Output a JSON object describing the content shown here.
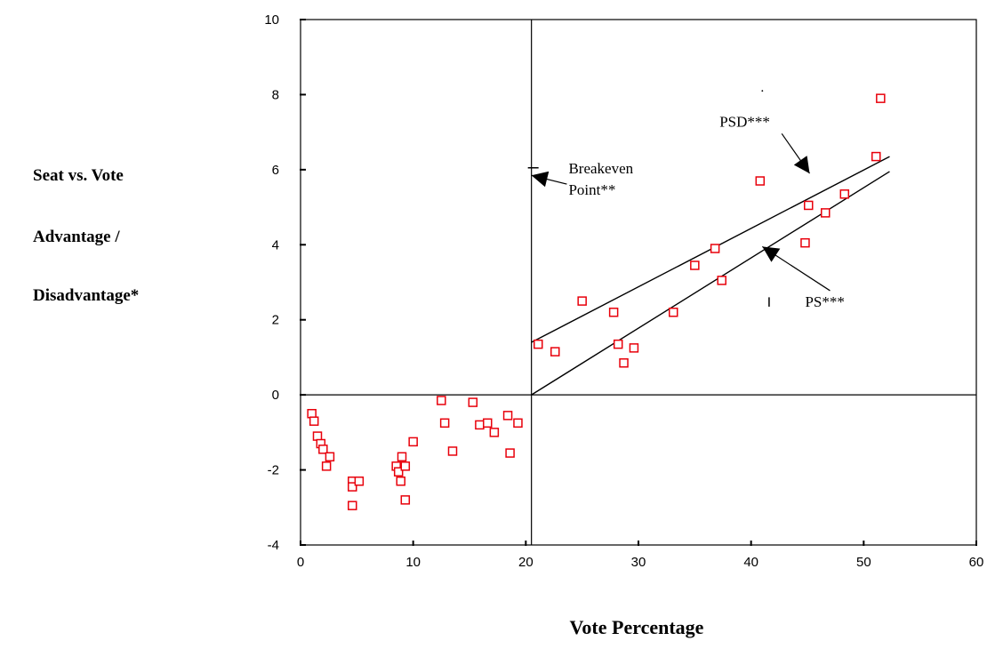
{
  "chart_data": {
    "type": "scatter",
    "title": "",
    "xlabel": "Vote Percentage",
    "ylabel_lines": [
      "Seat vs. Vote",
      "Advantage /",
      "Disadvantage*"
    ],
    "xlim": [
      0,
      60
    ],
    "ylim": [
      -4,
      10
    ],
    "xticks": [
      0,
      10,
      20,
      30,
      40,
      50,
      60
    ],
    "yticks": [
      -4,
      -2,
      0,
      2,
      4,
      6,
      8,
      10
    ],
    "grid": false,
    "marker_color": "#e8000b",
    "points": [
      [
        1.0,
        -0.5
      ],
      [
        1.2,
        -0.7
      ],
      [
        1.5,
        -1.1
      ],
      [
        1.8,
        -1.3
      ],
      [
        2.0,
        -1.45
      ],
      [
        2.3,
        -1.9
      ],
      [
        2.6,
        -1.65
      ],
      [
        4.6,
        -2.3
      ],
      [
        4.6,
        -2.45
      ],
      [
        5.2,
        -2.3
      ],
      [
        4.6,
        -2.95
      ],
      [
        8.5,
        -1.9
      ],
      [
        8.7,
        -2.05
      ],
      [
        9.0,
        -1.65
      ],
      [
        8.9,
        -2.3
      ],
      [
        9.3,
        -1.9
      ],
      [
        9.3,
        -2.8
      ],
      [
        10.0,
        -1.25
      ],
      [
        12.5,
        -0.15
      ],
      [
        12.8,
        -0.75
      ],
      [
        13.5,
        -1.5
      ],
      [
        15.3,
        -0.2
      ],
      [
        15.9,
        -0.8
      ],
      [
        16.6,
        -0.75
      ],
      [
        17.2,
        -1.0
      ],
      [
        18.4,
        -0.55
      ],
      [
        18.6,
        -1.55
      ],
      [
        19.3,
        -0.75
      ],
      [
        21.1,
        1.35
      ],
      [
        22.6,
        1.15
      ],
      [
        25.0,
        2.5
      ],
      [
        27.8,
        2.2
      ],
      [
        28.2,
        1.35
      ],
      [
        28.7,
        0.85
      ],
      [
        29.6,
        1.25
      ],
      [
        33.1,
        2.2
      ],
      [
        35.0,
        3.45
      ],
      [
        36.8,
        3.9
      ],
      [
        37.4,
        3.05
      ],
      [
        40.8,
        5.7
      ],
      [
        44.8,
        4.05
      ],
      [
        45.1,
        5.05
      ],
      [
        46.6,
        4.85
      ],
      [
        48.3,
        5.35
      ],
      [
        51.1,
        6.35
      ],
      [
        51.5,
        7.9
      ]
    ],
    "reference_lines": {
      "vertical_x": 20.5,
      "horizontal_y": 0
    },
    "fit_lines": [
      {
        "name": "PSD***",
        "x": [
          20.5,
          52.3
        ],
        "y": [
          1.4,
          6.35
        ]
      },
      {
        "name": "PS***",
        "x": [
          20.5,
          52.3
        ],
        "y": [
          0.0,
          5.95
        ]
      }
    ],
    "annotations": [
      {
        "id": "breakeven",
        "lines": [
          "Breakeven",
          "Point**"
        ],
        "x": 23.8,
        "y": 5.9,
        "arrow_to": [
          20.5,
          5.85
        ]
      },
      {
        "id": "psd",
        "lines": [
          "PSD***"
        ],
        "x": 37.2,
        "y": 7.15,
        "arrow_to": [
          45.2,
          5.9
        ]
      },
      {
        "id": "ps",
        "lines": [
          "PS***"
        ],
        "x": 44.8,
        "y": 2.35,
        "arrow_to": [
          41.0,
          3.95
        ]
      }
    ]
  }
}
